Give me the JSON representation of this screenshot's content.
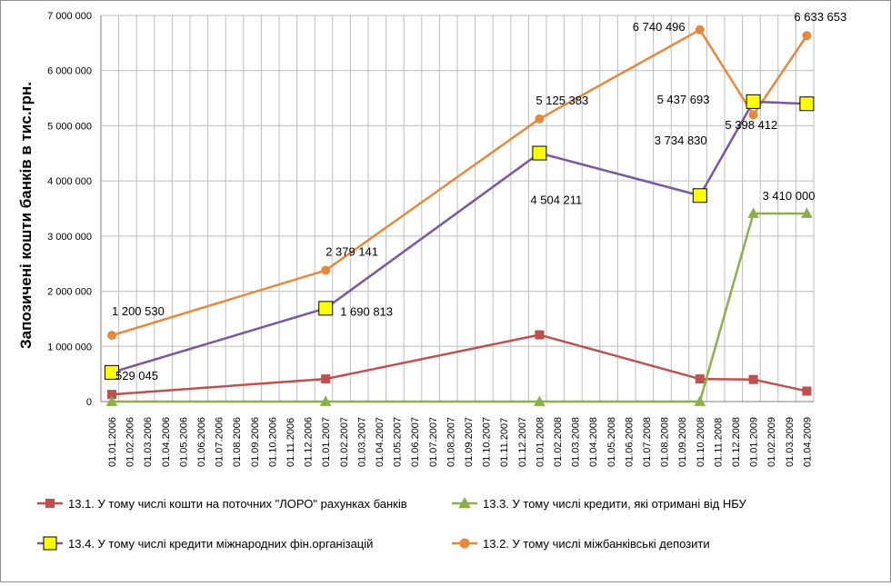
{
  "chart_data": {
    "type": "line",
    "ylabel": "Запозичені кошти банків в тис.грн.",
    "ylim": [
      0,
      7000000
    ],
    "yticks": [
      0,
      1000000,
      2000000,
      3000000,
      4000000,
      5000000,
      6000000,
      7000000
    ],
    "ytick_labels": [
      "0",
      "1 000 000",
      "2 000 000",
      "3 000 000",
      "4 000 000",
      "5 000 000",
      "6 000 000",
      "7 000 000"
    ],
    "grid": true,
    "legend_position": "bottom",
    "categories": [
      "01.01.2006",
      "01.02.2006",
      "01.03.2006",
      "01.04.2006",
      "01.05.2006",
      "01.06.2006",
      "01.07.2006",
      "01.08.2006",
      "01.09.2006",
      "01.10.2006",
      "01.11.2006",
      "01.12.2006",
      "01.01.2007",
      "01.02.2007",
      "01.03.2007",
      "01.04.2007",
      "01.05.2007",
      "01.06.2007",
      "01.07.2007",
      "01.08.2007",
      "01.09.2007",
      "01.10.2007",
      "01.11.2007",
      "01.12.2007",
      "01.01.2008",
      "01.02.2008",
      "01.03.2008",
      "01.04.2008",
      "01.05.2008",
      "01.06.2008",
      "01.07.2008",
      "01.08.2008",
      "01.09.2008",
      "01.10.2008",
      "01.11.2008",
      "01.12.2008",
      "01.01.2009",
      "01.02.2009",
      "01.03.2009",
      "01.04.2009"
    ],
    "series": [
      {
        "name": "13.2. У тому числі міжбанківські депозити",
        "color": "#e8883a",
        "marker": "circle",
        "points": [
          [
            0,
            1200530
          ],
          [
            12,
            2379141
          ],
          [
            24,
            5125383
          ],
          [
            33,
            6740496
          ],
          [
            36,
            5200000
          ],
          [
            39,
            6633653
          ]
        ],
        "labels": [
          {
            "i": 0,
            "text": "1 200 530"
          },
          {
            "i": 1,
            "text": "2 379 141"
          },
          {
            "i": 2,
            "text": "5 125 383"
          },
          {
            "i": 3,
            "text": "6 740 496"
          },
          {
            "i": 5,
            "text": "6 633 653"
          }
        ]
      },
      {
        "name": "13.4. У тому числі кредити міжнародних фін.організацій",
        "color": "#7a55a0",
        "marker": "square",
        "marker_fill": "#ffff00",
        "points": [
          [
            0,
            529045
          ],
          [
            12,
            1690813
          ],
          [
            24,
            4504211
          ],
          [
            33,
            3734830
          ],
          [
            36,
            5437693
          ],
          [
            39,
            5398412
          ]
        ],
        "labels": [
          {
            "i": 0,
            "text": "529 045"
          },
          {
            "i": 1,
            "text": "1 690 813"
          },
          {
            "i": 2,
            "text": "4 504 211"
          },
          {
            "i": 3,
            "text": "3 734 830"
          },
          {
            "i": 4,
            "text": "5 437 693"
          },
          {
            "i": 5,
            "text": "5 398 412"
          }
        ]
      },
      {
        "name": "13.1. У тому числі кошти на поточних \"ЛОРО\" рахунках банків",
        "color": "#c0504d",
        "marker": "square",
        "points": [
          [
            0,
            130000
          ],
          [
            12,
            410000
          ],
          [
            24,
            1210000
          ],
          [
            33,
            410000
          ],
          [
            36,
            400000
          ],
          [
            39,
            190000
          ]
        ],
        "labels": []
      },
      {
        "name": "13.3. У тому числі кредити, які отримані від НБУ",
        "color": "#8bb04b",
        "marker": "triangle",
        "points": [
          [
            0,
            0
          ],
          [
            12,
            0
          ],
          [
            24,
            0
          ],
          [
            33,
            0
          ],
          [
            36,
            3410000
          ],
          [
            39,
            3410000
          ]
        ],
        "labels": [
          {
            "i": 4,
            "text": "3 410 000"
          }
        ]
      }
    ],
    "legend": [
      {
        "name": "13.1. У тому числі кошти на поточних \"ЛОРО\" рахунках банків",
        "color": "#c0504d",
        "marker": "square"
      },
      {
        "name": "13.3. У тому числі кредити, які отримані від НБУ",
        "color": "#8bb04b",
        "marker": "triangle"
      },
      {
        "name": "13.4. У тому числі кредити міжнародних фін.організацій",
        "color": "#7a55a0",
        "marker": "square",
        "marker_fill": "#ffff00"
      },
      {
        "name": "13.2. У тому числі міжбанківські депозити",
        "color": "#e8883a",
        "marker": "circle"
      }
    ]
  }
}
